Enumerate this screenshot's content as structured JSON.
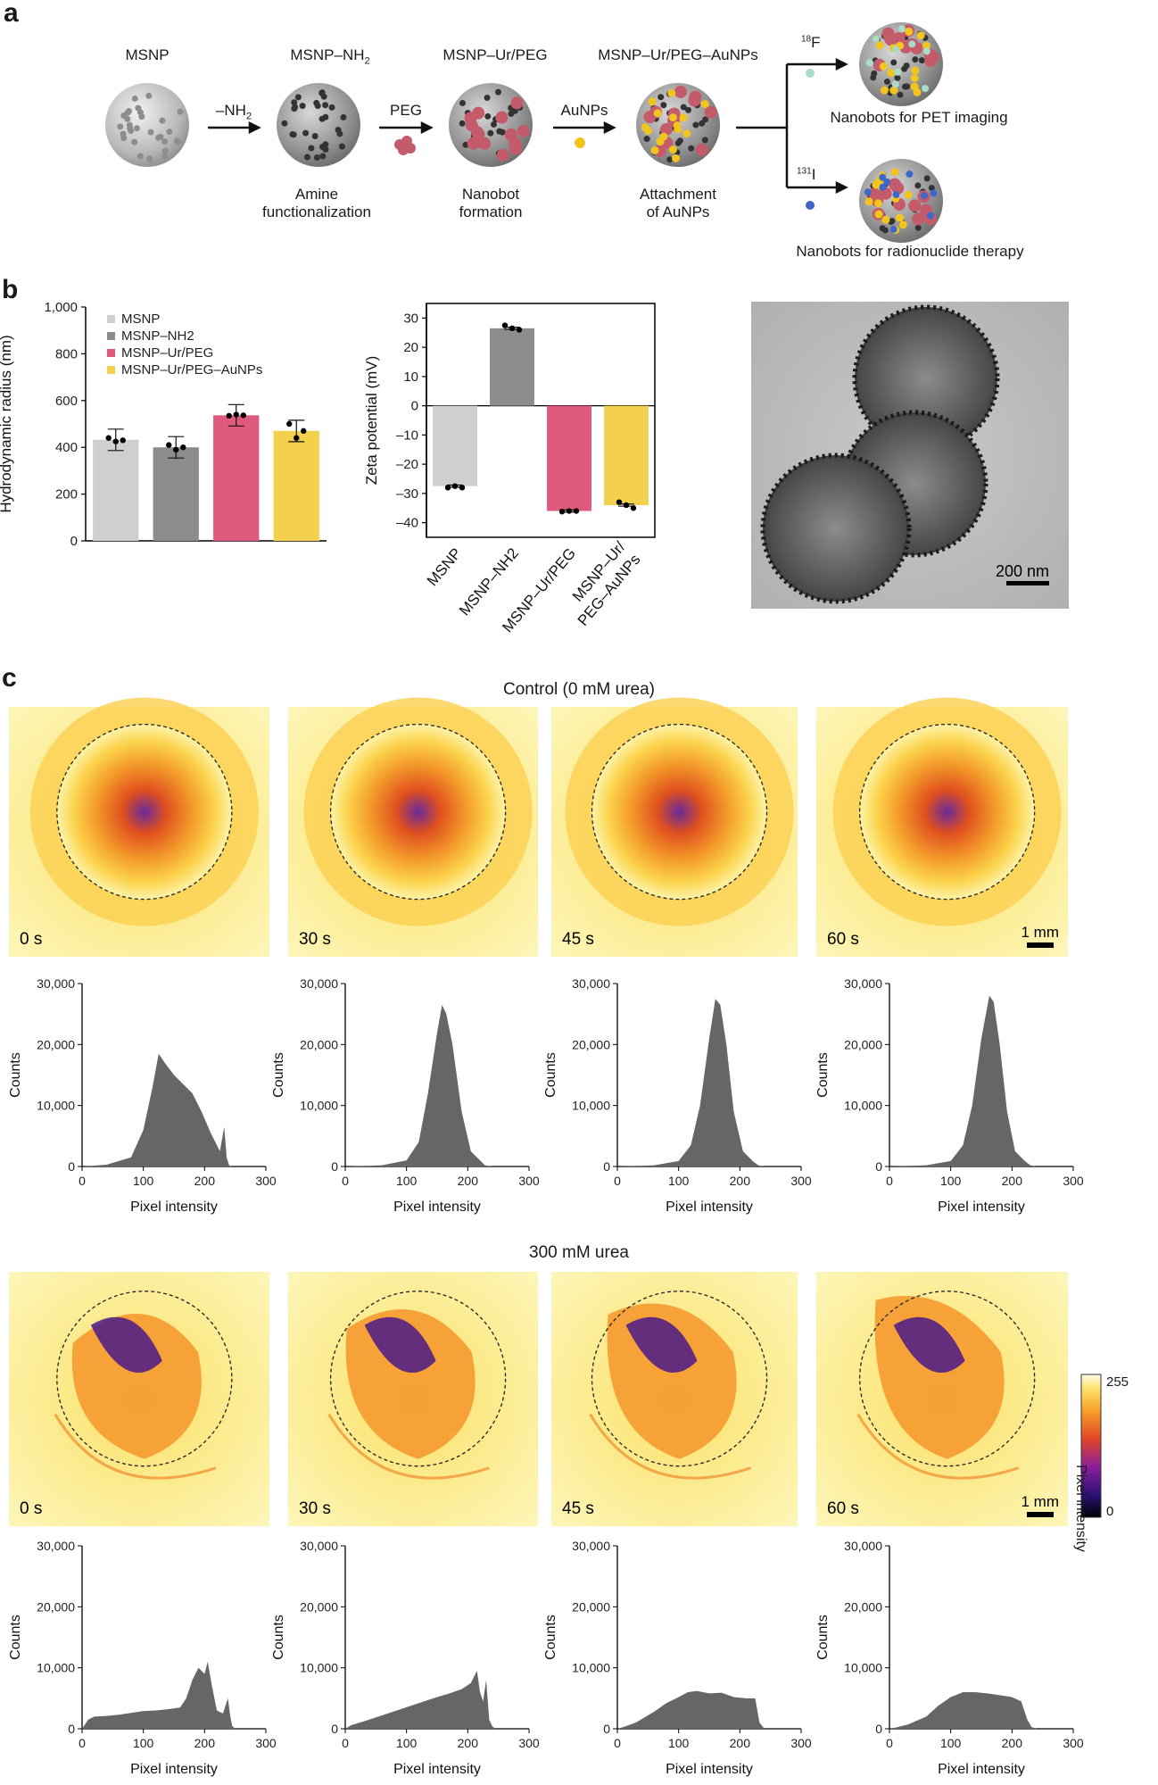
{
  "panel_a": {
    "label": "a",
    "stages": [
      {
        "name": "MSNP",
        "caption": ""
      },
      {
        "name": "MSNP–NH",
        "name_sub": "2",
        "caption_1": "Amine",
        "caption_2": "functionalization"
      },
      {
        "name": "MSNP–Ur/PEG",
        "caption_1": "Nanobot",
        "caption_2": "formation"
      },
      {
        "name": "MSNP–Ur/PEG–AuNPs",
        "caption_1": "Attachment",
        "caption_2": "of AuNPs"
      }
    ],
    "arrows": [
      {
        "label": "–NH",
        "label_sub": "2"
      },
      {
        "label": "PEG"
      },
      {
        "label": "AuNPs"
      }
    ],
    "branches": [
      {
        "isotope_mass": "18",
        "isotope": "F",
        "caption": "Nanobots for PET imaging",
        "dot_color": "#a8dcc8"
      },
      {
        "isotope_mass": "131",
        "isotope": "I",
        "caption": "Nanobots for radionuclide therapy",
        "dot_color": "#3f66c9"
      }
    ]
  },
  "panel_b": {
    "label": "b",
    "tem_scale": "200 nm"
  },
  "panel_c": {
    "label": "c",
    "control_title": "Control  (0 mM urea)",
    "urea_title": "300 mM urea",
    "times": [
      "0 s",
      "30 s",
      "45 s",
      "60 s"
    ],
    "scale": "1 mm",
    "colorbar": {
      "max": "255",
      "min": "0",
      "label": "Pixel intensity"
    }
  },
  "chart_data": [
    {
      "type": "bar",
      "categories": [
        "MSNP",
        "MSNP–NH2",
        "MSNP–Ur/PEG",
        "MSNP–Ur/PEG–AuNPs"
      ],
      "values": [
        432,
        400,
        537,
        470
      ],
      "points": [
        [
          440,
          425,
          430
        ],
        [
          410,
          390,
          400
        ],
        [
          535,
          540,
          537
        ],
        [
          500,
          440,
          470
        ]
      ],
      "colors": [
        "#cfcfcf",
        "#8c8c8c",
        "#e05a7e",
        "#f3d04d"
      ],
      "ylabel": "Hydrodynamic radius (nm)",
      "ylim": [
        0,
        1000
      ],
      "yticks": [
        "0",
        "200",
        "400",
        "600",
        "800",
        "1,000"
      ],
      "legend": [
        "MSNP",
        "MSNP–NH2",
        "MSNP–Ur/PEG",
        "MSNP–Ur/PEG–AuNPs"
      ],
      "legend_position": "top-left"
    },
    {
      "type": "bar",
      "categories": [
        "MSNP",
        "MSNP–NH2",
        "MSNP–Ur/PEG",
        "MSNP–Ur/ PEG–AuNPs"
      ],
      "values": [
        -27.5,
        26.5,
        -36,
        -34
      ],
      "points": [
        [
          -28,
          -27.5,
          -28
        ],
        [
          27.5,
          26.5,
          26
        ],
        [
          -36.2,
          -36,
          -36
        ],
        [
          -33,
          -34,
          -35
        ]
      ],
      "colors": [
        "#cfcfcf",
        "#8c8c8c",
        "#e05a7e",
        "#f3d04d"
      ],
      "ylabel": "Zeta potential (mV)",
      "ylim": [
        -45,
        35
      ],
      "yticks": [
        "–40",
        "–30",
        "–20",
        "–10",
        "0",
        "10",
        "20",
        "30"
      ]
    },
    {
      "type": "area",
      "group": "Control (0 mM urea)",
      "histograms": [
        {
          "time": "0 s",
          "x": [
            0,
            40,
            80,
            100,
            115,
            125,
            135,
            150,
            165,
            180,
            195,
            210,
            225,
            232,
            236,
            240,
            245
          ],
          "y": [
            0,
            300,
            1500,
            6000,
            13000,
            18500,
            17000,
            15000,
            13500,
            12000,
            9000,
            5500,
            2500,
            6500,
            1500,
            200,
            0
          ]
        },
        {
          "time": "30 s",
          "x": [
            0,
            60,
            100,
            120,
            135,
            150,
            158,
            165,
            175,
            190,
            205,
            215,
            222,
            228,
            240
          ],
          "y": [
            0,
            200,
            1000,
            4000,
            12000,
            22000,
            26500,
            25000,
            20000,
            9000,
            2500,
            1500,
            800,
            200,
            0
          ]
        },
        {
          "time": "45 s",
          "x": [
            0,
            60,
            100,
            120,
            135,
            150,
            160,
            168,
            178,
            190,
            205,
            215,
            222,
            230,
            240
          ],
          "y": [
            0,
            200,
            900,
            3500,
            10000,
            21000,
            27500,
            26500,
            20000,
            9000,
            2500,
            1500,
            800,
            200,
            0
          ]
        },
        {
          "time": "60 s",
          "x": [
            0,
            60,
            100,
            120,
            135,
            150,
            163,
            170,
            180,
            192,
            205,
            215,
            222,
            230,
            240
          ],
          "y": [
            0,
            200,
            900,
            3500,
            10000,
            21000,
            28000,
            27000,
            20000,
            9000,
            2500,
            1500,
            800,
            200,
            0
          ]
        }
      ],
      "xlabel": "Pixel intensity",
      "ylabel": "Counts",
      "xlim": [
        0,
        300
      ],
      "ylim": [
        0,
        30000
      ],
      "xticks": [
        "0",
        "100",
        "200",
        "300"
      ],
      "yticks": [
        "0",
        "10,000",
        "20,000",
        "30,000"
      ]
    },
    {
      "type": "area",
      "group": "300 mM urea",
      "histograms": [
        {
          "time": "0 s",
          "x": [
            0,
            10,
            20,
            40,
            60,
            80,
            100,
            120,
            140,
            160,
            170,
            180,
            190,
            200,
            205,
            212,
            220,
            230,
            238,
            242,
            245,
            250
          ],
          "y": [
            0,
            1500,
            2000,
            2100,
            2300,
            2600,
            2900,
            3000,
            3200,
            3500,
            5000,
            8000,
            10000,
            9000,
            11000,
            7000,
            3000,
            2500,
            5000,
            2000,
            500,
            0
          ]
        },
        {
          "time": "30 s",
          "x": [
            0,
            10,
            30,
            60,
            90,
            120,
            150,
            170,
            190,
            205,
            215,
            220,
            225,
            230,
            235,
            240,
            245
          ],
          "y": [
            0,
            600,
            1200,
            2200,
            3200,
            4200,
            5200,
            5800,
            6500,
            7500,
            9500,
            6000,
            4500,
            8000,
            1500,
            400,
            0
          ]
        },
        {
          "time": "45 s",
          "x": [
            0,
            10,
            30,
            60,
            80,
            100,
            115,
            130,
            150,
            170,
            190,
            210,
            225,
            232,
            240
          ],
          "y": [
            0,
            300,
            1000,
            2800,
            4200,
            5200,
            6000,
            6200,
            5800,
            5900,
            5200,
            5000,
            5000,
            1000,
            0
          ]
        },
        {
          "time": "60 s",
          "x": [
            0,
            10,
            30,
            60,
            80,
            100,
            120,
            140,
            160,
            180,
            200,
            215,
            225,
            232,
            240
          ],
          "y": [
            0,
            200,
            700,
            2000,
            3800,
            5200,
            6000,
            6000,
            5800,
            5500,
            5200,
            4500,
            1500,
            300,
            0
          ]
        }
      ],
      "xlabel": "Pixel intensity",
      "ylabel": "Counts",
      "xlim": [
        0,
        300
      ],
      "ylim": [
        0,
        30000
      ],
      "xticks": [
        "0",
        "100",
        "200",
        "300"
      ],
      "yticks": [
        "0",
        "10,000",
        "20,000",
        "30,000"
      ]
    }
  ]
}
